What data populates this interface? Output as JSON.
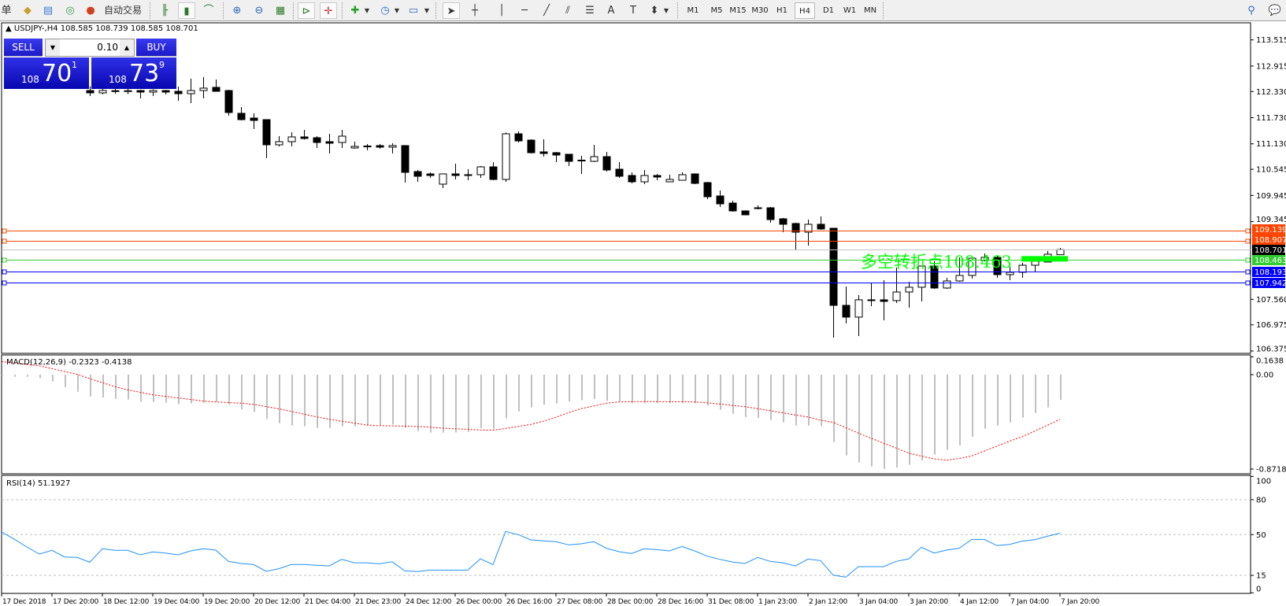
{
  "toolbar": {
    "partial_label": "单",
    "auto_trade_label": "自动交易",
    "timeframes": [
      "M1",
      "M5",
      "M15",
      "M30",
      "H1",
      "H4",
      "D1",
      "W1",
      "MN"
    ],
    "active_timeframe": "H4"
  },
  "chart_header": "USDJPY-,H4  108.585 108.739 108.585 108.701",
  "trade_panel": {
    "sell_label": "SELL",
    "buy_label": "BUY",
    "lot": "0.10",
    "sell": {
      "prefix": "108",
      "main": "70",
      "sup": "1"
    },
    "buy": {
      "prefix": "108",
      "main": "73",
      "sup": "9"
    }
  },
  "annotation": {
    "text": "多空转折点108.463",
    "color": "#00ff00",
    "price": 108.463
  },
  "chart_data": [
    {
      "type": "candlestick",
      "symbol": "USDJPY-",
      "timeframe": "H4",
      "ylim": [
        106.32,
        113.907
      ],
      "price_ticks": [
        "113.515",
        "112.915",
        "112.330",
        "111.730",
        "111.130",
        "110.545",
        "109.945",
        "109.345",
        "107.560",
        "106.975",
        "106.375"
      ],
      "x_labels": [
        "17 Dec 2018",
        "17 Dec 20:00",
        "18 Dec 12:00",
        "19 Dec 04:00",
        "19 Dec 20:00",
        "20 Dec 12:00",
        "21 Dec 04:00",
        "21 Dec 23:00",
        "24 Dec 12:00",
        "26 Dec 00:00",
        "26 Dec 16:00",
        "27 Dec 08:00",
        "28 Dec 00:00",
        "28 Dec 16:00",
        "31 Dec 08:00",
        "1 Jan 23:00",
        "2 Jan 12:00",
        "3 Jan 04:00",
        "3 Jan 20:00",
        "4 Jan 12:00",
        "7 Jan 04:00",
        "7 Jan 20:00"
      ],
      "candles_ohlc": [
        [
          112.353,
          112.45,
          112.227,
          112.299
        ],
        [
          112.299,
          112.4,
          112.263,
          112.353
        ],
        [
          112.35,
          112.45,
          112.28,
          112.33
        ],
        [
          112.33,
          112.42,
          112.27,
          112.35
        ],
        [
          112.353,
          112.37,
          112.173,
          112.317
        ],
        [
          112.317,
          112.38,
          112.227,
          112.353
        ],
        [
          112.353,
          112.37,
          112.263,
          112.317
        ],
        [
          112.335,
          112.444,
          112.119,
          112.281
        ],
        [
          112.281,
          112.624,
          112.064,
          112.353
        ],
        [
          112.353,
          112.661,
          112.173,
          112.408
        ],
        [
          112.426,
          112.606,
          112.335,
          112.335
        ],
        [
          112.353,
          112.37,
          111.775,
          111.848
        ],
        [
          111.83,
          111.974,
          111.667,
          111.685
        ],
        [
          111.721,
          111.83,
          111.468,
          111.667
        ],
        [
          111.685,
          111.69,
          110.8,
          111.107
        ],
        [
          111.107,
          111.306,
          111.071,
          111.179
        ],
        [
          111.179,
          111.396,
          111.071,
          111.288
        ],
        [
          111.288,
          111.45,
          111.23,
          111.252
        ],
        [
          111.27,
          111.306,
          111.035,
          111.161
        ],
        [
          111.179,
          111.36,
          110.908,
          111.143
        ],
        [
          111.161,
          111.45,
          111.035,
          111.306
        ],
        [
          111.035,
          111.179,
          111.017,
          111.071
        ],
        [
          111.08,
          111.125,
          110.981,
          111.06
        ],
        [
          111.089,
          111.125,
          111.017,
          111.053
        ],
        [
          111.053,
          111.143,
          110.908,
          111.089
        ],
        [
          111.089,
          111.1,
          110.24,
          110.475
        ],
        [
          110.493,
          110.529,
          110.258,
          110.385
        ],
        [
          110.439,
          110.475,
          110.349,
          110.403
        ],
        [
          110.204,
          110.45,
          110.114,
          110.439
        ],
        [
          110.439,
          110.674,
          110.312,
          110.403
        ],
        [
          110.421,
          110.547,
          110.294,
          110.403
        ],
        [
          110.421,
          110.619,
          110.349,
          110.601
        ],
        [
          110.601,
          110.71,
          110.294,
          110.312
        ],
        [
          110.312,
          111.39,
          110.258,
          111.36
        ],
        [
          111.36,
          111.414,
          111.161,
          111.197
        ],
        [
          111.215,
          111.233,
          110.908,
          110.926
        ],
        [
          110.945,
          111.233,
          110.836,
          110.908
        ],
        [
          110.926,
          110.945,
          110.71,
          110.872
        ],
        [
          110.89,
          110.9,
          110.619,
          110.728
        ],
        [
          110.755,
          110.854,
          110.439,
          110.746
        ],
        [
          110.728,
          111.107,
          110.71,
          110.836
        ],
        [
          110.836,
          110.945,
          110.493,
          110.529
        ],
        [
          110.547,
          110.71,
          110.349,
          110.385
        ],
        [
          110.403,
          110.475,
          110.222,
          110.258
        ],
        [
          110.258,
          110.529,
          110.204,
          110.403
        ],
        [
          110.403,
          110.439,
          110.294,
          110.367
        ],
        [
          110.258,
          110.421,
          110.258,
          110.312
        ],
        [
          110.294,
          110.475,
          110.294,
          110.421
        ],
        [
          110.439,
          110.45,
          110.204,
          110.222
        ],
        [
          110.24,
          110.258,
          109.861,
          109.915
        ],
        [
          109.933,
          110.059,
          109.68,
          109.752
        ],
        [
          109.77,
          109.825,
          109.572,
          109.59
        ],
        [
          109.59,
          109.6,
          109.49,
          109.5
        ],
        [
          109.662,
          109.716,
          109.626,
          109.644
        ],
        [
          109.662,
          109.68,
          109.319,
          109.391
        ],
        [
          109.409,
          109.427,
          109.102,
          109.283
        ],
        [
          109.301,
          109.319,
          108.686,
          109.102
        ],
        [
          109.102,
          109.391,
          108.795,
          109.283
        ],
        [
          109.283,
          109.463,
          109.156,
          109.174
        ],
        [
          109.192,
          109.2,
          106.682,
          107.422
        ],
        [
          107.422,
          107.856,
          107.007,
          107.152
        ],
        [
          107.152,
          107.657,
          106.718,
          107.549
        ],
        [
          107.549,
          107.945,
          107.404,
          107.531
        ],
        [
          107.549,
          108.0,
          107.079,
          107.513
        ],
        [
          107.531,
          108.289,
          107.477,
          107.729
        ],
        [
          107.729,
          107.964,
          107.368,
          107.838
        ],
        [
          107.838,
          108.325,
          107.513,
          108.325
        ],
        [
          108.325,
          108.434,
          107.802,
          107.82
        ],
        [
          107.82,
          108.054,
          107.802,
          107.982
        ],
        [
          107.982,
          108.524,
          107.964,
          108.109
        ],
        [
          108.109,
          108.51,
          108.036,
          108.506
        ],
        [
          108.452,
          108.614,
          108.434,
          108.524
        ],
        [
          108.524,
          108.56,
          108.054,
          108.127
        ],
        [
          108.127,
          108.307,
          108.0,
          108.181
        ],
        [
          108.181,
          108.397,
          108.054,
          108.343
        ],
        [
          108.343,
          108.47,
          108.181,
          108.434
        ],
        [
          108.416,
          108.668,
          108.416,
          108.596
        ],
        [
          108.585,
          108.739,
          108.585,
          108.701
        ]
      ],
      "horizontal_lines": [
        {
          "price": 109.139,
          "label": "109.139",
          "color": "#ff4500"
        },
        {
          "price": 108.907,
          "label": "108.907",
          "color": "#ff4500"
        },
        {
          "price": 108.701,
          "label": "108.701",
          "color": "#c0c0c0",
          "label_bg": "#000000"
        },
        {
          "price": 108.463,
          "label": "108.463",
          "color": "#32cd32"
        },
        {
          "price": 108.193,
          "label": "108.193",
          "color": "#0000ff"
        },
        {
          "price": 107.942,
          "label": "107.942",
          "color": "#0000ff"
        }
      ]
    },
    {
      "type": "bar",
      "indicator": "MACD(12,26,9) -0.2323 -0.4138",
      "ylim": [
        -0.9157,
        0.1817
      ],
      "ticks": [
        "0.1638",
        "0.00",
        "-0.8718"
      ],
      "tick_values": [
        0.1638,
        0,
        -0.8718
      ],
      "histogram_color": "#c0c0c0",
      "signal_color": "#ff0000",
      "histogram": [
        -0.015,
        -0.02,
        -0.02,
        -0.034,
        -0.063,
        -0.114,
        -0.158,
        -0.201,
        -0.211,
        -0.223,
        -0.23,
        -0.252,
        -0.252,
        -0.259,
        -0.271,
        -0.266,
        -0.259,
        -0.254,
        -0.278,
        -0.32,
        -0.344,
        -0.409,
        -0.448,
        -0.47,
        -0.477,
        -0.492,
        -0.492,
        -0.477,
        -0.477,
        -0.47,
        -0.47,
        -0.46,
        -0.492,
        -0.521,
        -0.535,
        -0.535,
        -0.535,
        -0.528,
        -0.494,
        -0.502,
        -0.404,
        -0.339,
        -0.303,
        -0.278,
        -0.266,
        -0.247,
        -0.235,
        -0.225,
        -0.242,
        -0.247,
        -0.264,
        -0.264,
        -0.264,
        -0.264,
        -0.264,
        -0.264,
        -0.288,
        -0.325,
        -0.361,
        -0.392,
        -0.4,
        -0.419,
        -0.441,
        -0.47,
        -0.47,
        -0.477,
        -0.623,
        -0.746,
        -0.811,
        -0.848,
        -0.87,
        -0.858,
        -0.833,
        -0.792,
        -0.739,
        -0.695,
        -0.654,
        -0.574,
        -0.499,
        -0.47,
        -0.441,
        -0.397,
        -0.354,
        -0.303,
        -0.2323
      ],
      "signal": [
        0.121,
        0.108,
        0.094,
        0.081,
        0.055,
        0.029,
        0.003,
        -0.037,
        -0.074,
        -0.111,
        -0.14,
        -0.163,
        -0.186,
        -0.201,
        -0.215,
        -0.23,
        -0.244,
        -0.252,
        -0.258,
        -0.264,
        -0.275,
        -0.295,
        -0.316,
        -0.34,
        -0.365,
        -0.39,
        -0.412,
        -0.43,
        -0.448,
        -0.466,
        -0.471,
        -0.473,
        -0.476,
        -0.479,
        -0.485,
        -0.494,
        -0.5,
        -0.505,
        -0.511,
        -0.513,
        -0.497,
        -0.478,
        -0.46,
        -0.43,
        -0.394,
        -0.35,
        -0.315,
        -0.289,
        -0.264,
        -0.252,
        -0.25,
        -0.249,
        -0.249,
        -0.25,
        -0.251,
        -0.252,
        -0.26,
        -0.272,
        -0.284,
        -0.296,
        -0.314,
        -0.333,
        -0.353,
        -0.373,
        -0.392,
        -0.42,
        -0.441,
        -0.49,
        -0.54,
        -0.587,
        -0.633,
        -0.678,
        -0.725,
        -0.752,
        -0.778,
        -0.79,
        -0.775,
        -0.751,
        -0.706,
        -0.66,
        -0.615,
        -0.573,
        -0.521,
        -0.468,
        -0.4138
      ]
    },
    {
      "type": "line",
      "indicator": "RSI(14) 51.1927",
      "ylim": [
        -0.5,
        100.9
      ],
      "ticks": [
        "100",
        "80",
        "50",
        "15",
        "0"
      ],
      "tick_values": [
        100,
        80,
        50,
        15,
        0
      ],
      "levels": [
        80,
        50,
        15
      ],
      "color": "#1e90ff",
      "values": [
        52.3,
        46.2,
        39.4,
        33.3,
        36.5,
        30.8,
        30.4,
        26.3,
        37.8,
        36.5,
        36.5,
        32.6,
        35.1,
        34.2,
        32.6,
        36.0,
        37.8,
        36.7,
        27.0,
        25.2,
        24.3,
        18.4,
        20.7,
        24.3,
        24.3,
        23.6,
        23.1,
        28.8,
        25.8,
        25.8,
        24.9,
        26.7,
        18.8,
        18.2,
        19.5,
        19.5,
        19.5,
        19.5,
        29.2,
        24.3,
        52.7,
        50.0,
        45.5,
        44.6,
        43.9,
        41.2,
        42.1,
        43.9,
        38.3,
        35.3,
        33.7,
        37.8,
        37.1,
        36.0,
        39.8,
        36.0,
        31.5,
        28.8,
        26.5,
        25.2,
        30.4,
        27.0,
        25.8,
        23.1,
        29.0,
        27.7,
        15.2,
        13.4,
        22.5,
        22.5,
        22.5,
        27.0,
        29.2,
        39.2,
        34.2,
        36.7,
        38.3,
        45.9,
        45.9,
        40.5,
        41.6,
        44.4,
        45.7,
        48.6,
        51.1927
      ]
    }
  ]
}
